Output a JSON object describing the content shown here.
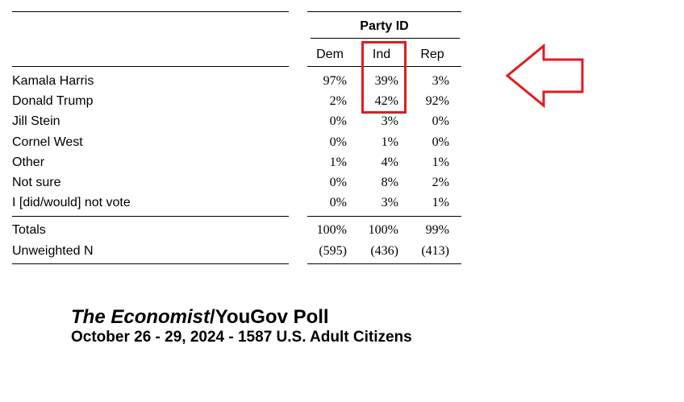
{
  "table": {
    "group_header": "Party ID",
    "columns": [
      "Dem",
      "Ind",
      "Rep"
    ],
    "rows": [
      {
        "label": "Kamala Harris",
        "values": [
          "97%",
          "39%",
          "3%"
        ]
      },
      {
        "label": "Donald Trump",
        "values": [
          "2%",
          "42%",
          "92%"
        ]
      },
      {
        "label": "Jill Stein",
        "values": [
          "0%",
          "3%",
          "0%"
        ]
      },
      {
        "label": "Cornel West",
        "values": [
          "0%",
          "1%",
          "0%"
        ]
      },
      {
        "label": "Other",
        "values": [
          "1%",
          "4%",
          "1%"
        ]
      },
      {
        "label": "Not sure",
        "values": [
          "0%",
          "8%",
          "2%"
        ]
      },
      {
        "label": "I [did/would] not vote",
        "values": [
          "0%",
          "3%",
          "1%"
        ]
      }
    ],
    "totals": {
      "label": "Totals",
      "values": [
        "100%",
        "100%",
        "99%"
      ]
    },
    "unweighted": {
      "label": "Unweighted N",
      "values": [
        "(595)",
        "(436)",
        "(413)"
      ]
    }
  },
  "annotation": {
    "highlight_color": "#e11b22",
    "arrow_icon": "left-arrow-outline"
  },
  "poll": {
    "title_italic": "The Economist",
    "title_rest": "/YouGov Poll",
    "subtitle": "October 26 - 29, 2024 - 1587 U.S. Adult Citizens"
  }
}
